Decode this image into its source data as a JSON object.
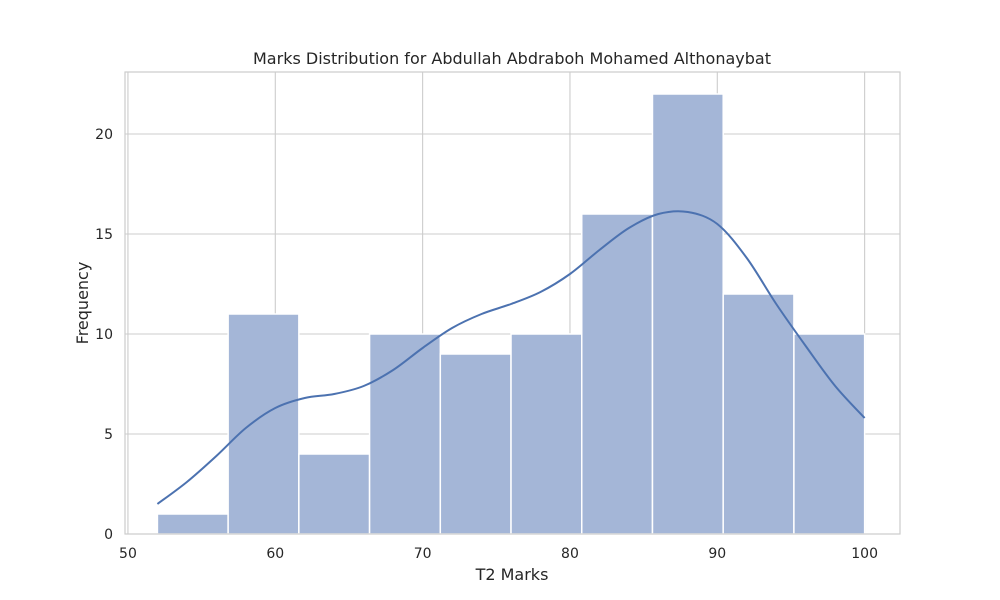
{
  "chart_data": {
    "type": "bar",
    "title": "Marks Distribution for Abdullah Abdraboh Mohamed Althonaybat",
    "xlabel": "T2 Marks",
    "ylabel": "Frequency",
    "xlim": [
      49.8,
      102.4
    ],
    "ylim": [
      0,
      23.1
    ],
    "x_ticks": [
      50,
      60,
      70,
      80,
      90,
      100
    ],
    "y_ticks": [
      0,
      5,
      10,
      15,
      20
    ],
    "bins": [
      {
        "start": 52.0,
        "end": 56.8,
        "count": 1
      },
      {
        "start": 56.8,
        "end": 61.6,
        "count": 11
      },
      {
        "start": 61.6,
        "end": 66.4,
        "count": 4
      },
      {
        "start": 66.4,
        "end": 71.2,
        "count": 10
      },
      {
        "start": 71.2,
        "end": 76.0,
        "count": 9
      },
      {
        "start": 76.0,
        "end": 80.8,
        "count": 10
      },
      {
        "start": 80.8,
        "end": 85.6,
        "count": 16
      },
      {
        "start": 85.6,
        "end": 90.4,
        "count": 22
      },
      {
        "start": 90.4,
        "end": 95.2,
        "count": 12
      },
      {
        "start": 95.2,
        "end": 100.0,
        "count": 10
      }
    ],
    "kde": {
      "x": [
        52,
        54,
        56,
        58,
        60,
        62,
        64,
        66,
        68,
        70,
        72,
        74,
        76,
        78,
        80,
        82,
        84,
        86,
        88,
        90,
        92,
        94,
        96,
        98,
        100
      ],
      "y": [
        1.5,
        2.6,
        3.9,
        5.3,
        6.3,
        6.8,
        7.0,
        7.4,
        8.2,
        9.3,
        10.3,
        11.0,
        11.5,
        12.1,
        13.0,
        14.2,
        15.3,
        16.0,
        16.1,
        15.5,
        13.8,
        11.5,
        9.4,
        7.4,
        5.8
      ]
    },
    "grid": true,
    "colors": {
      "bar": "#a4b6d7",
      "bar_edge": "#ffffff",
      "kde": "#4c72b0",
      "grid": "#cccccc",
      "spine": "#cccccc"
    }
  }
}
